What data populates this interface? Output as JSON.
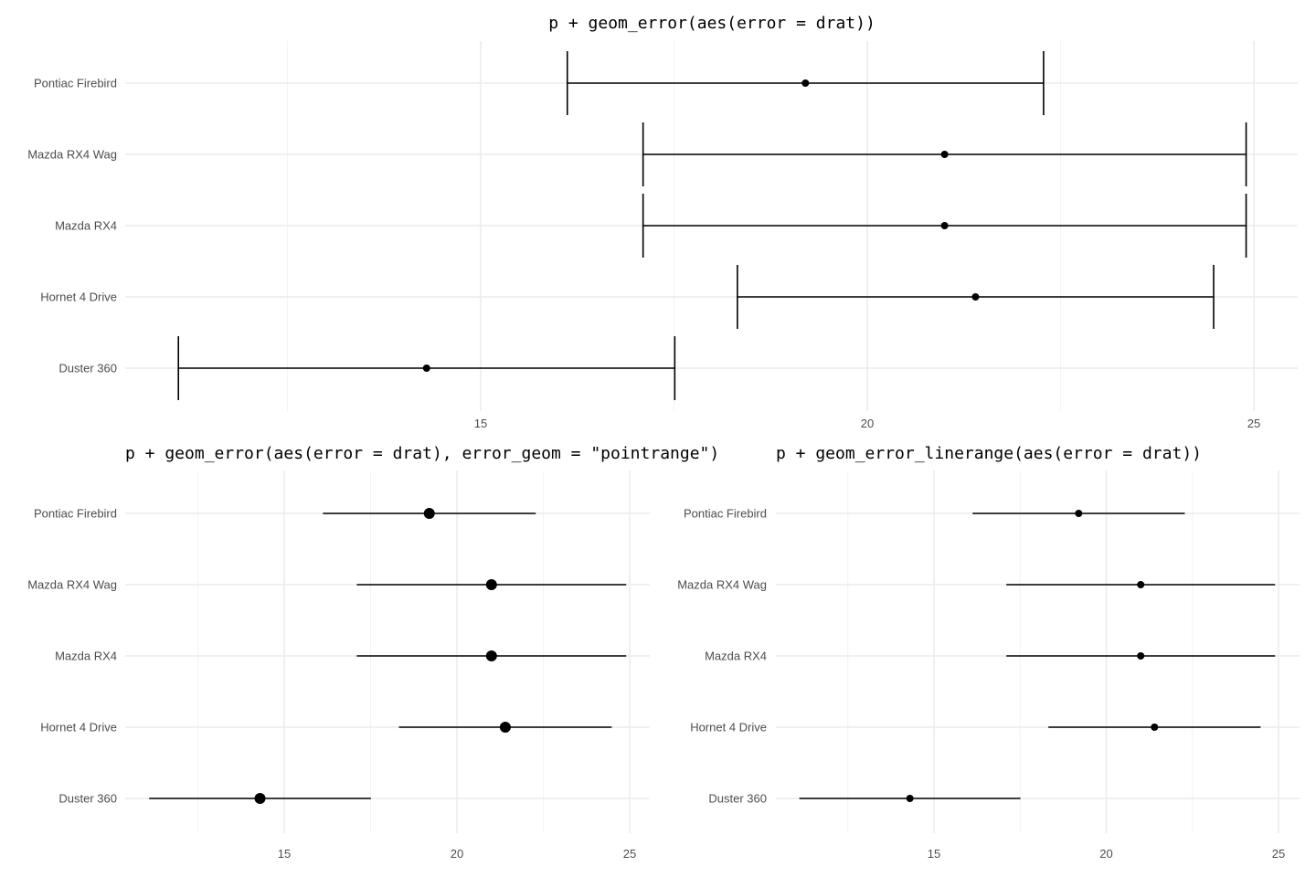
{
  "chart_data": [
    {
      "type": "errorbar",
      "title": "p + geom_error(aes(error = drat))",
      "categories": [
        "Duster 360",
        "Hornet 4 Drive",
        "Mazda RX4",
        "Mazda RX4 Wag",
        "Pontiac Firebird"
      ],
      "values": [
        14.3,
        21.4,
        21.0,
        21.0,
        19.2
      ],
      "errors": [
        3.21,
        3.08,
        3.9,
        3.9,
        3.08
      ],
      "xticks": [
        "15",
        "20",
        "25"
      ],
      "xlim": [
        10.4,
        25.6
      ],
      "grid": true,
      "xlabel": "",
      "ylabel": ""
    },
    {
      "type": "pointrange",
      "title": "p + geom_error(aes(error = drat), error_geom = \"pointrange\")",
      "categories": [
        "Duster 360",
        "Hornet 4 Drive",
        "Mazda RX4",
        "Mazda RX4 Wag",
        "Pontiac Firebird"
      ],
      "values": [
        14.3,
        21.4,
        21.0,
        21.0,
        19.2
      ],
      "errors": [
        3.21,
        3.08,
        3.9,
        3.9,
        3.08
      ],
      "xticks": [
        "15",
        "20",
        "25"
      ],
      "xlim": [
        10.4,
        25.6
      ],
      "grid": true,
      "xlabel": "",
      "ylabel": ""
    },
    {
      "type": "linerange",
      "title": "p + geom_error_linerange(aes(error = drat))",
      "categories": [
        "Duster 360",
        "Hornet 4 Drive",
        "Mazda RX4",
        "Mazda RX4 Wag",
        "Pontiac Firebird"
      ],
      "values": [
        14.3,
        21.4,
        21.0,
        21.0,
        19.2
      ],
      "errors": [
        3.21,
        3.08,
        3.9,
        3.9,
        3.08
      ],
      "xticks": [
        "15",
        "20",
        "25"
      ],
      "xlim": [
        10.4,
        25.6
      ],
      "grid": true,
      "xlabel": "",
      "ylabel": ""
    }
  ],
  "colors": {
    "mark": "#000000",
    "grid_major": "#ebebeb",
    "grid_minor": "#f3f3f3",
    "tick_text": "#4d4d4d"
  }
}
